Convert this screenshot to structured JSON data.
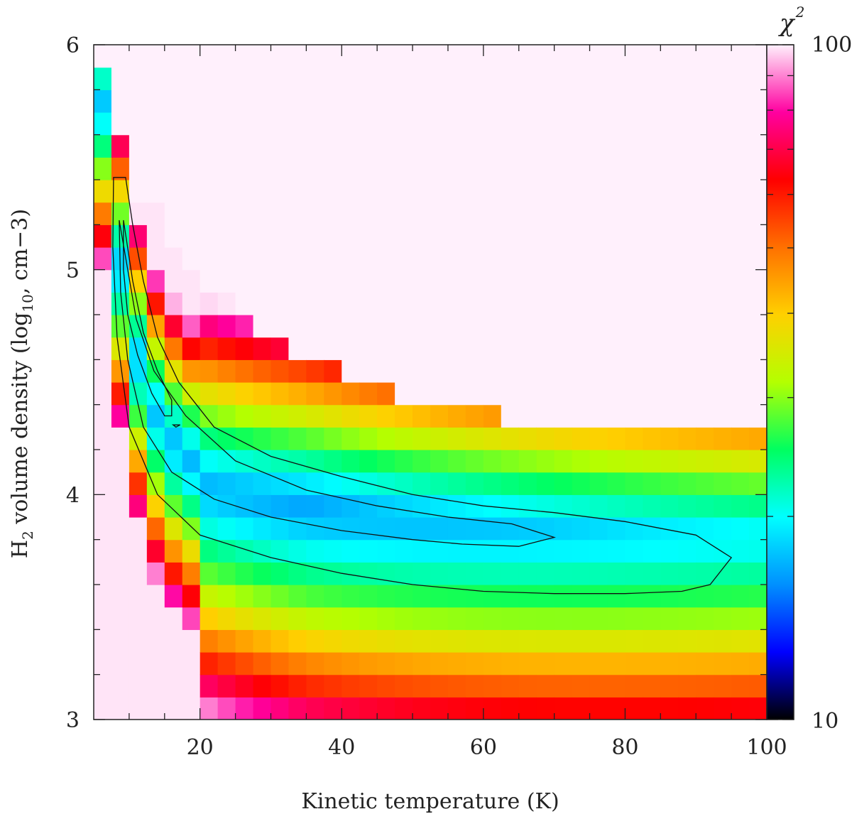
{
  "chart_data": {
    "type": "heatmap",
    "xlabel": "Kinetic temperature (K)",
    "ylabel_parts": {
      "h": "H",
      "sub2": "2",
      "mid": " volume density (log",
      "sub10": "10",
      "end": ", cm−3)"
    },
    "x_range": [
      5,
      100
    ],
    "y_range": [
      3,
      6
    ],
    "x_ticks": [
      "20",
      "40",
      "60",
      "80",
      "100"
    ],
    "y_ticks": [
      "3",
      "4",
      "5",
      "6"
    ],
    "x_step": 2.5,
    "y_step": 0.1,
    "colorbar": {
      "title": "χ",
      "title_sup": "2",
      "scale": "log",
      "min_label": "10",
      "max_label": "100",
      "range": [
        10,
        100
      ]
    },
    "contours": [
      {
        "level": "outer",
        "points": [
          [
            7.8,
            5.41
          ],
          [
            9.5,
            5.41
          ],
          [
            10.5,
            5.2
          ],
          [
            12,
            4.95
          ],
          [
            14,
            4.7
          ],
          [
            17,
            4.5
          ],
          [
            22,
            4.3
          ],
          [
            30,
            4.17
          ],
          [
            40,
            4.08
          ],
          [
            50,
            4.0
          ],
          [
            60,
            3.95
          ],
          [
            70,
            3.92
          ],
          [
            80,
            3.88
          ],
          [
            90,
            3.82
          ],
          [
            95,
            3.72
          ],
          [
            92,
            3.6
          ],
          [
            88,
            3.57
          ],
          [
            80,
            3.56
          ],
          [
            70,
            3.56
          ],
          [
            60,
            3.57
          ],
          [
            50,
            3.6
          ],
          [
            40,
            3.65
          ],
          [
            30,
            3.72
          ],
          [
            20,
            3.82
          ],
          [
            14,
            4.0
          ],
          [
            10,
            4.3
          ],
          [
            8.3,
            4.7
          ],
          [
            7.7,
            5.1
          ],
          [
            7.8,
            5.41
          ]
        ]
      },
      {
        "level": "middle",
        "points": [
          [
            8.6,
            5.22
          ],
          [
            9.8,
            5.0
          ],
          [
            11,
            4.78
          ],
          [
            13.5,
            4.55
          ],
          [
            18,
            4.35
          ],
          [
            25,
            4.15
          ],
          [
            35,
            4.02
          ],
          [
            45,
            3.95
          ],
          [
            55,
            3.9
          ],
          [
            64,
            3.87
          ],
          [
            70,
            3.81
          ],
          [
            65,
            3.77
          ],
          [
            57,
            3.78
          ],
          [
            50,
            3.8
          ],
          [
            40,
            3.84
          ],
          [
            30,
            3.9
          ],
          [
            22,
            3.98
          ],
          [
            16,
            4.1
          ],
          [
            12,
            4.3
          ],
          [
            9.8,
            4.6
          ],
          [
            8.8,
            4.9
          ],
          [
            8.6,
            5.22
          ]
        ]
      },
      {
        "level": "inner",
        "points": [
          [
            9.2,
            5.22
          ],
          [
            10.5,
            4.95
          ],
          [
            12,
            4.72
          ],
          [
            14,
            4.55
          ],
          [
            16,
            4.42
          ],
          [
            16,
            4.35
          ],
          [
            15,
            4.35
          ],
          [
            13.2,
            4.45
          ],
          [
            11.2,
            4.62
          ],
          [
            9.8,
            4.8
          ],
          [
            9.2,
            5.0
          ],
          [
            9.2,
            5.22
          ]
        ]
      },
      {
        "level": "inner-dot",
        "points": [
          [
            16.2,
            4.31
          ],
          [
            17.2,
            4.31
          ],
          [
            16.6,
            4.3
          ],
          [
            16.2,
            4.31
          ]
        ]
      }
    ]
  }
}
